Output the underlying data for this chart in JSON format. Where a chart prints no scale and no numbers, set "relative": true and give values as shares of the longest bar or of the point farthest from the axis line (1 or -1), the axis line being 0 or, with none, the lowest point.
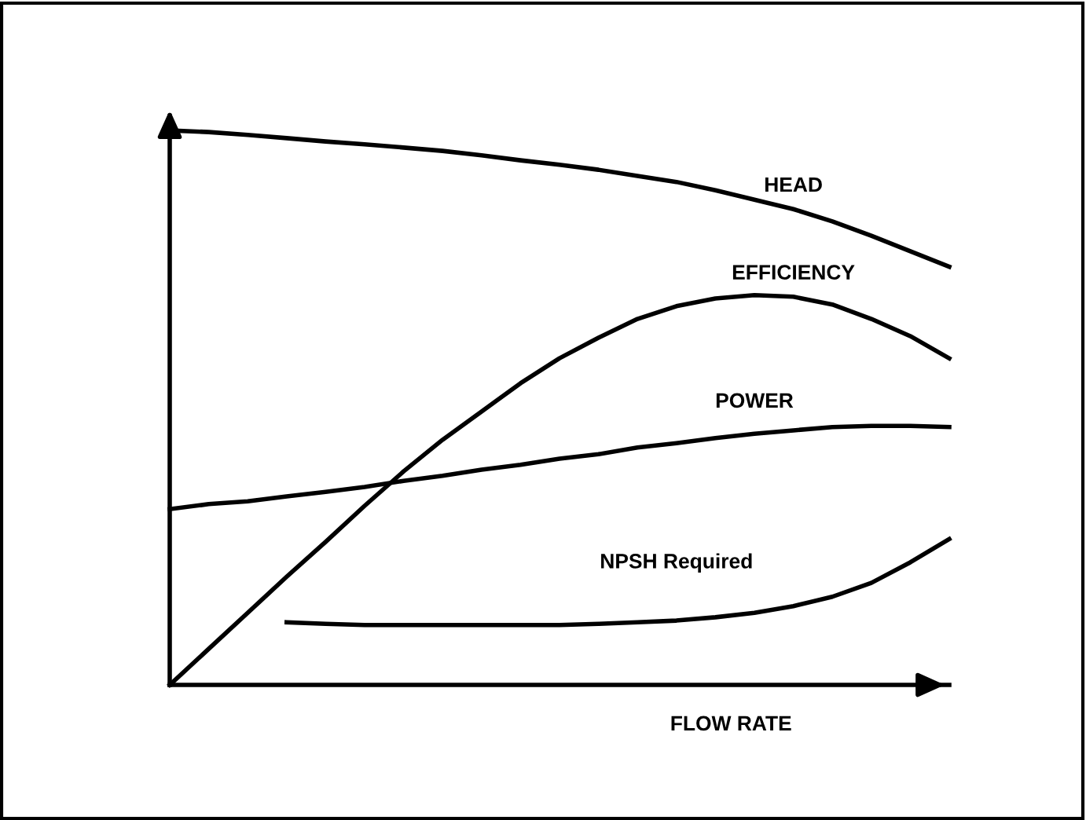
{
  "chart_data": {
    "type": "line",
    "relative": true,
    "xlabel": "FLOW RATE",
    "categories": [
      null,
      null,
      null,
      null,
      null,
      null,
      null,
      null,
      null,
      null,
      null,
      null,
      null,
      null,
      null,
      null,
      null,
      null,
      null,
      null,
      null
    ],
    "series": [
      {
        "name": "HEAD",
        "color": "#000000",
        "values": [
          1,
          0.997,
          0.992,
          0.986,
          0.98,
          0.975,
          0.969,
          0.963,
          0.955,
          0.946,
          0.938,
          0.929,
          0.918,
          0.907,
          0.892,
          0.875,
          0.858,
          0.836,
          0.81,
          0.782,
          0.754
        ]
      },
      {
        "name": "EFFICIENCY",
        "color": "#000000",
        "values": [
          0,
          0.065,
          0.13,
          0.195,
          0.258,
          0.323,
          0.385,
          0.442,
          0.493,
          0.544,
          0.589,
          0.626,
          0.66,
          0.683,
          0.697,
          0.703,
          0.7,
          0.686,
          0.66,
          0.629,
          0.589
        ]
      },
      {
        "name": "POWER",
        "color": "#000000",
        "values": [
          0.317,
          0.326,
          0.331,
          0.34,
          0.348,
          0.357,
          0.368,
          0.377,
          0.388,
          0.397,
          0.408,
          0.416,
          0.428,
          0.436,
          0.445,
          0.453,
          0.459,
          0.465,
          0.467,
          0.467,
          0.465
        ]
      },
      {
        "name": "NPSH Required",
        "color": "#000000",
        "values": [
          null,
          null,
          null,
          0.113,
          0.11,
          0.108,
          0.108,
          0.108,
          0.108,
          0.108,
          0.108,
          0.11,
          0.113,
          0.116,
          0.122,
          0.13,
          0.142,
          0.159,
          0.184,
          0.221,
          0.263
        ]
      }
    ],
    "grid": false,
    "legend": false,
    "marker": "none",
    "line_style": "solid"
  }
}
